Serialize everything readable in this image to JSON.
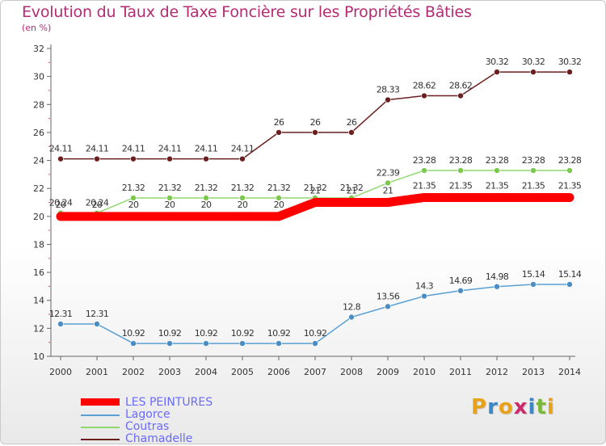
{
  "title": "Evolution du Taux de Taxe Foncière sur les Propriétés Bâties",
  "subtitle": "(en %)",
  "logo": {
    "text": "Proxiti",
    "letters": [
      "P",
      "r",
      "o",
      "x",
      "i",
      "t",
      "i"
    ],
    "colors": [
      "#e8a21a",
      "#3a88c8",
      "#e8a21a",
      "#cc2a6b",
      "#3a88c8",
      "#7bb83a",
      "#e8a21a"
    ]
  },
  "legend": [
    {
      "label": "LES PEINTURES",
      "color": "#ff0000",
      "text_color": "#6a6aff",
      "swatch": "thick"
    },
    {
      "label": "Lagorce",
      "color": "#5aa0d4",
      "text_color": "#6a6aff",
      "swatch": "thin"
    },
    {
      "label": "Coutras",
      "color": "#90d870",
      "text_color": "#6a6aff",
      "swatch": "thin"
    },
    {
      "label": "Chamadelle",
      "color": "#6b1f1f",
      "text_color": "#6a6aff",
      "swatch": "thin"
    }
  ],
  "chart_data": {
    "type": "line",
    "x": [
      "2000",
      "2001",
      "2002",
      "2003",
      "2004",
      "2005",
      "2006",
      "2007",
      "2008",
      "2009",
      "2010",
      "2011",
      "2012",
      "2013",
      "2014"
    ],
    "ylim": [
      10,
      32
    ],
    "yticks": [
      10,
      12,
      14,
      16,
      18,
      20,
      22,
      24,
      26,
      28,
      30,
      32
    ],
    "grid": false,
    "series": [
      {
        "name": "Chamadelle",
        "color": "#6b1f1f",
        "point_color": "#6b1f1f",
        "values": [
          24.11,
          24.11,
          24.11,
          24.11,
          24.11,
          24.11,
          26,
          26,
          26,
          28.33,
          28.62,
          28.62,
          30.32,
          30.32,
          30.32
        ],
        "labels": [
          "24.11",
          "24.11",
          "24.11",
          "24.11",
          "24.11",
          "24.11",
          "26",
          "26",
          "26",
          "28.33",
          "28.62",
          "28.62",
          "30.32",
          "30.32",
          "30.32"
        ]
      },
      {
        "name": "Coutras",
        "color": "#90d870",
        "point_color": "#7cc84e",
        "values": [
          20.24,
          20.24,
          21.32,
          21.32,
          21.32,
          21.32,
          21.32,
          21.32,
          21.32,
          22.39,
          23.28,
          23.28,
          23.28,
          23.28,
          23.28
        ],
        "labels": [
          "20.24",
          "20.24",
          "21.32",
          "21.32",
          "21.32",
          "21.32",
          "21.32",
          "21.32",
          "21.32",
          "22.39",
          "23.28",
          "23.28",
          "23.28",
          "23.28",
          "23.28"
        ]
      },
      {
        "name": "Lagorce",
        "color": "#5aa0d4",
        "point_color": "#4a8cc4",
        "values": [
          12.31,
          12.31,
          10.92,
          10.92,
          10.92,
          10.92,
          10.92,
          10.92,
          12.8,
          13.56,
          14.3,
          14.69,
          14.98,
          15.14,
          15.14
        ],
        "labels": [
          "12.31",
          "12.31",
          "10.92",
          "10.92",
          "10.92",
          "10.92",
          "10.92",
          "10.92",
          "12.8",
          "13.56",
          "14.3",
          "14.69",
          "14.98",
          "15.14",
          "15.14"
        ]
      },
      {
        "name": "LES PEINTURES",
        "color": "#ff0000",
        "point_color": "#ff0000",
        "values": [
          20,
          20,
          20,
          20,
          20,
          20,
          20,
          21,
          21,
          21,
          21.35,
          21.35,
          21.35,
          21.35,
          21.35
        ],
        "labels": [
          "20",
          "20",
          "20",
          "20",
          "20",
          "20",
          "20",
          "21",
          "21",
          "21",
          "21.35",
          "21.35",
          "21.35",
          "21.35",
          "21.35"
        ]
      }
    ]
  }
}
